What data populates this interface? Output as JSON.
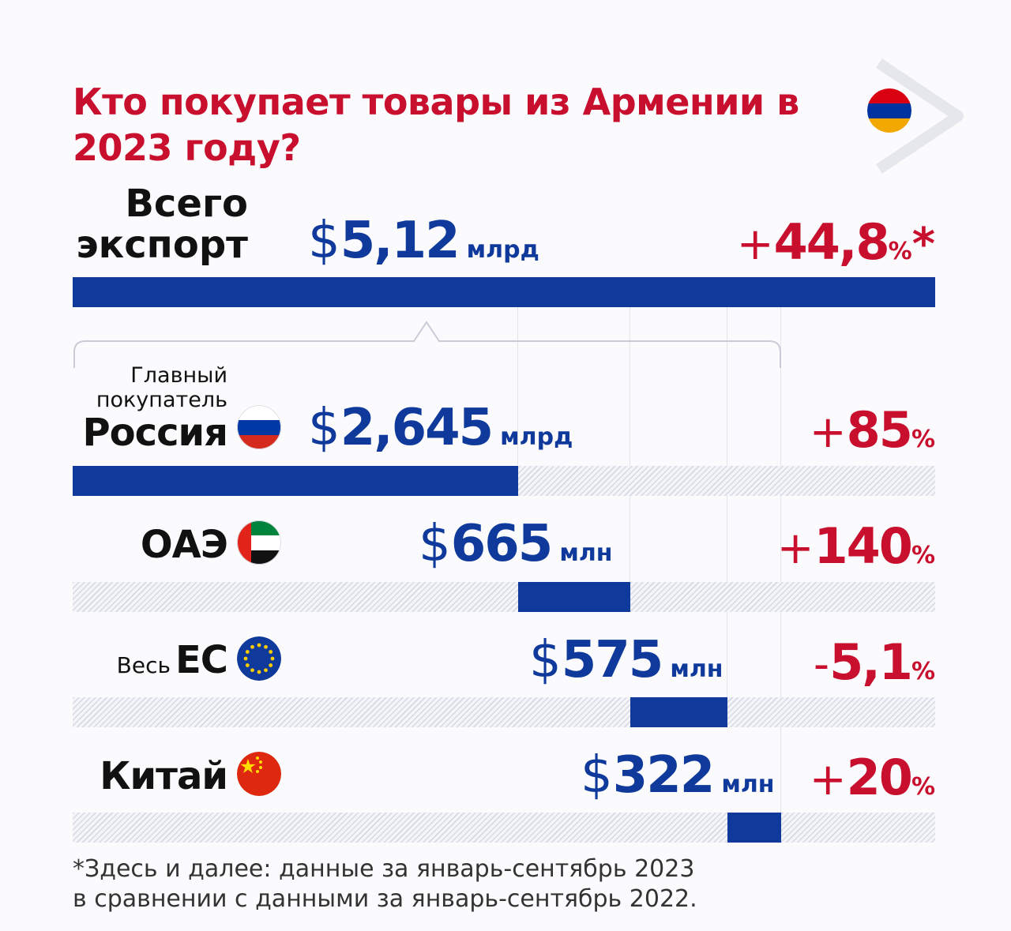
{
  "title": "Кто покупает товары из Армении в 2023 году?",
  "colors": {
    "accent_red": "#c8102e",
    "brand_blue": "#0f3a9c"
  },
  "total": {
    "label_line1": "Всего",
    "label_line2": "экспорт",
    "currency": "$",
    "value": "5,12",
    "unit": "млрд",
    "change_sign": "+",
    "change": "44,8",
    "change_unit": "%",
    "change_mark": "*"
  },
  "rows": [
    {
      "pre_label_1": "Главный",
      "pre_label_2": "покупатель",
      "label": "Россия",
      "flag": "russia-flag-icon",
      "currency": "$",
      "value": "2,645",
      "unit": "млрд",
      "change_sign": "+",
      "change": "85",
      "change_unit": "%"
    },
    {
      "label": "ОАЭ",
      "flag": "uae-flag-icon",
      "currency": "$",
      "value": "665",
      "unit": "млн",
      "change_sign": "+",
      "change": "140",
      "change_unit": "%"
    },
    {
      "pre_label": "Весь",
      "label": "ЕС",
      "flag": "eu-flag-icon",
      "currency": "$",
      "value": "575",
      "unit": "млн",
      "change_sign": "-",
      "change": "5,1",
      "change_unit": "%"
    },
    {
      "label": "Китай",
      "flag": "china-flag-icon",
      "currency": "$",
      "value": "322",
      "unit": "млн",
      "change_sign": "+",
      "change": "20",
      "change_unit": "%"
    }
  ],
  "chart_data": {
    "type": "bar",
    "unit": "$ млн",
    "total": 5120,
    "categories": [
      "Россия",
      "ОАЭ",
      "ЕС",
      "Китай"
    ],
    "values": [
      2645,
      665,
      575,
      322
    ],
    "change_pct": [
      85,
      140,
      -5.1,
      20
    ],
    "total_change_pct": 44.8,
    "layout": "stacked-segments"
  },
  "footnote": {
    "line1": "*Здесь и далее: данные за январь-сентябрь 2023",
    "line2": "в сравнении с данными за январь-сентябрь 2022."
  }
}
